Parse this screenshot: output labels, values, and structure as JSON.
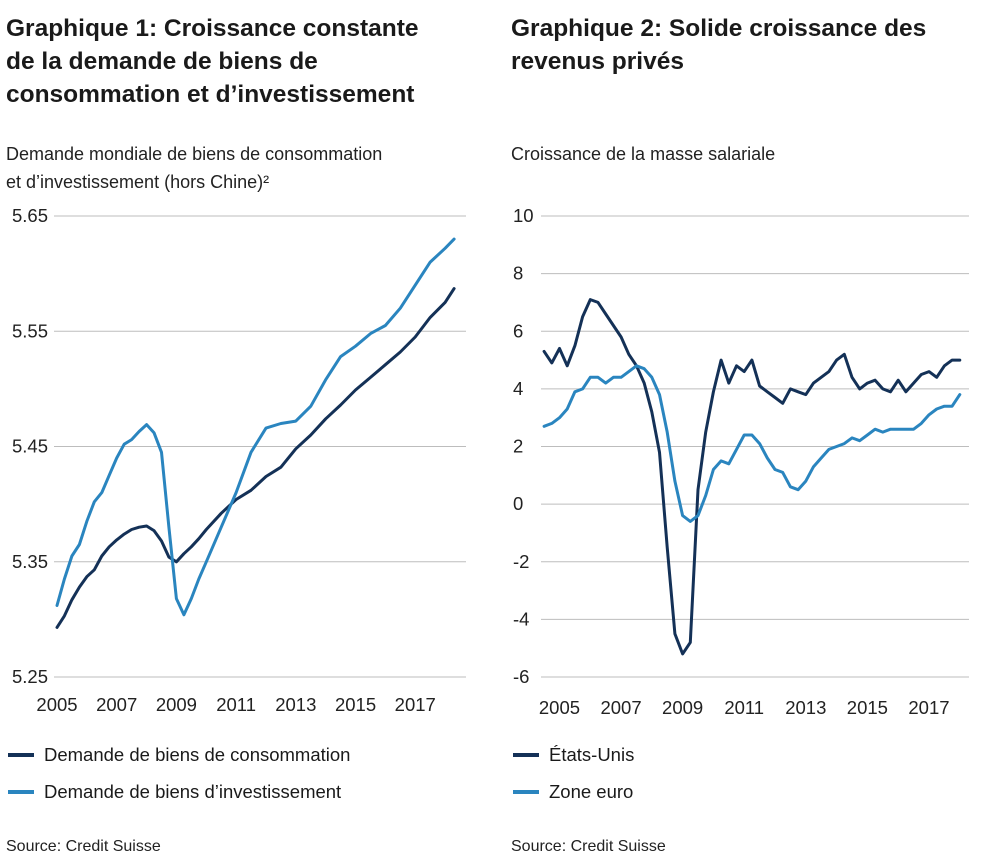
{
  "charts": [
    {
      "title_lines": [
        "Graphique 1: Croissance constante",
        "de la demande de biens de",
        "consommation et d’investissement"
      ],
      "subtitle_lines": [
        "Demande mondiale de biens de consommation",
        "et d’investissement (hors Chine)²"
      ],
      "source": "Source: Credit Suisse",
      "legend": [
        "Demande de biens de consommation",
        "Demande de biens d’investissement"
      ]
    },
    {
      "title_lines": [
        "Graphique 2: Solide croissance des",
        "revenus privés"
      ],
      "subtitle_lines": [
        "Croissance de la masse salariale"
      ],
      "source": "Source: Credit Suisse",
      "legend": [
        "États-Unis",
        "Zone euro"
      ]
    }
  ],
  "colors": {
    "dark": "#143157",
    "light": "#2a85bf",
    "grid": "#bdbdbd"
  },
  "chart_data": [
    {
      "type": "line",
      "title": "Graphique 1: Croissance constante de la demande de biens de consommation et d’investissement",
      "subtitle": "Demande mondiale de biens de consommation et d’investissement (hors Chine)²",
      "xlabel": "",
      "ylabel": "",
      "xlim": [
        2004.9,
        2018.7
      ],
      "ylim": [
        5.25,
        5.65
      ],
      "y_ticks": [
        5.25,
        5.35,
        5.45,
        5.55,
        5.65
      ],
      "x_ticks": [
        2005,
        2007,
        2009,
        2011,
        2013,
        2015,
        2017
      ],
      "grid": true,
      "legend_position": "bottom",
      "series": [
        {
          "name": "Demande de biens de consommation",
          "color": "#143157",
          "x": [
            2005.0,
            2005.25,
            2005.5,
            2005.75,
            2006.0,
            2006.25,
            2006.5,
            2006.75,
            2007.0,
            2007.25,
            2007.5,
            2007.75,
            2008.0,
            2008.25,
            2008.5,
            2008.75,
            2009.0,
            2009.25,
            2009.5,
            2009.75,
            2010.0,
            2010.5,
            2011.0,
            2011.5,
            2012.0,
            2012.5,
            2013.0,
            2013.5,
            2014.0,
            2014.5,
            2015.0,
            2015.5,
            2016.0,
            2016.5,
            2017.0,
            2017.5,
            2018.0,
            2018.3
          ],
          "y": [
            5.293,
            5.303,
            5.317,
            5.328,
            5.337,
            5.343,
            5.355,
            5.363,
            5.369,
            5.374,
            5.378,
            5.38,
            5.381,
            5.377,
            5.368,
            5.354,
            5.35,
            5.357,
            5.363,
            5.37,
            5.378,
            5.392,
            5.404,
            5.412,
            5.424,
            5.432,
            5.448,
            5.46,
            5.474,
            5.486,
            5.499,
            5.51,
            5.521,
            5.532,
            5.545,
            5.562,
            5.575,
            5.587
          ]
        },
        {
          "name": "Demande de biens d’investissement",
          "color": "#2a85bf",
          "x": [
            2005.0,
            2005.25,
            2005.5,
            2005.75,
            2006.0,
            2006.25,
            2006.5,
            2006.75,
            2007.0,
            2007.25,
            2007.5,
            2007.75,
            2008.0,
            2008.25,
            2008.5,
            2008.75,
            2009.0,
            2009.25,
            2009.5,
            2009.75,
            2010.0,
            2010.5,
            2011.0,
            2011.5,
            2012.0,
            2012.5,
            2013.0,
            2013.5,
            2014.0,
            2014.5,
            2015.0,
            2015.5,
            2016.0,
            2016.5,
            2017.0,
            2017.5,
            2018.0,
            2018.3
          ],
          "y": [
            5.312,
            5.335,
            5.355,
            5.365,
            5.385,
            5.402,
            5.41,
            5.425,
            5.44,
            5.452,
            5.456,
            5.463,
            5.469,
            5.462,
            5.445,
            5.38,
            5.318,
            5.304,
            5.318,
            5.335,
            5.35,
            5.38,
            5.41,
            5.445,
            5.466,
            5.47,
            5.472,
            5.485,
            5.508,
            5.528,
            5.537,
            5.548,
            5.555,
            5.57,
            5.59,
            5.61,
            5.622,
            5.63
          ]
        }
      ]
    },
    {
      "type": "line",
      "title": "Graphique 2: Solide croissance des revenus privés",
      "subtitle": "Croissance de la masse salariale",
      "xlabel": "",
      "ylabel": "",
      "xlim": [
        2004.4,
        2018.3
      ],
      "ylim": [
        -6,
        10
      ],
      "y_ticks": [
        -6,
        -4,
        -2,
        0,
        2,
        4,
        6,
        8,
        10
      ],
      "x_ticks": [
        2005,
        2007,
        2009,
        2011,
        2013,
        2015,
        2017
      ],
      "grid": true,
      "legend_position": "bottom",
      "series": [
        {
          "name": "États-Unis",
          "color": "#143157",
          "x": [
            2004.5,
            2004.75,
            2005.0,
            2005.25,
            2005.5,
            2005.75,
            2006.0,
            2006.25,
            2006.5,
            2006.75,
            2007.0,
            2007.25,
            2007.5,
            2007.75,
            2008.0,
            2008.25,
            2008.5,
            2008.75,
            2009.0,
            2009.25,
            2009.5,
            2009.75,
            2010.0,
            2010.25,
            2010.5,
            2010.75,
            2011.0,
            2011.25,
            2011.5,
            2011.75,
            2012.0,
            2012.25,
            2012.5,
            2012.75,
            2013.0,
            2013.25,
            2013.5,
            2013.75,
            2014.0,
            2014.25,
            2014.5,
            2014.75,
            2015.0,
            2015.25,
            2015.5,
            2015.75,
            2016.0,
            2016.25,
            2016.5,
            2016.75,
            2017.0,
            2017.25,
            2017.5,
            2017.75,
            2018.0
          ],
          "y": [
            5.3,
            4.9,
            5.4,
            4.8,
            5.5,
            6.5,
            7.1,
            7.0,
            6.6,
            6.2,
            5.8,
            5.2,
            4.8,
            4.2,
            3.2,
            1.8,
            -1.5,
            -4.5,
            -5.2,
            -4.8,
            0.5,
            2.5,
            3.9,
            5.0,
            4.2,
            4.8,
            4.6,
            5.0,
            4.1,
            3.9,
            3.7,
            3.5,
            4.0,
            3.9,
            3.8,
            4.2,
            4.4,
            4.6,
            5.0,
            5.2,
            4.4,
            4.0,
            4.2,
            4.3,
            4.0,
            3.9,
            4.3,
            3.9,
            4.2,
            4.5,
            4.6,
            4.4,
            4.8,
            5.0,
            5.0
          ]
        },
        {
          "name": "Zone euro",
          "color": "#2a85bf",
          "x": [
            2004.5,
            2004.75,
            2005.0,
            2005.25,
            2005.5,
            2005.75,
            2006.0,
            2006.25,
            2006.5,
            2006.75,
            2007.0,
            2007.25,
            2007.5,
            2007.75,
            2008.0,
            2008.25,
            2008.5,
            2008.75,
            2009.0,
            2009.25,
            2009.5,
            2009.75,
            2010.0,
            2010.25,
            2010.5,
            2010.75,
            2011.0,
            2011.25,
            2011.5,
            2011.75,
            2012.0,
            2012.25,
            2012.5,
            2012.75,
            2013.0,
            2013.25,
            2013.5,
            2013.75,
            2014.0,
            2014.25,
            2014.5,
            2014.75,
            2015.0,
            2015.25,
            2015.5,
            2015.75,
            2016.0,
            2016.25,
            2016.5,
            2016.75,
            2017.0,
            2017.25,
            2017.5,
            2017.75,
            2018.0
          ],
          "y": [
            2.7,
            2.8,
            3.0,
            3.3,
            3.9,
            4.0,
            4.4,
            4.4,
            4.2,
            4.4,
            4.4,
            4.6,
            4.8,
            4.7,
            4.4,
            3.8,
            2.5,
            0.8,
            -0.4,
            -0.6,
            -0.4,
            0.3,
            1.2,
            1.5,
            1.4,
            1.9,
            2.4,
            2.4,
            2.1,
            1.6,
            1.2,
            1.1,
            0.6,
            0.5,
            0.8,
            1.3,
            1.6,
            1.9,
            2.0,
            2.1,
            2.3,
            2.2,
            2.4,
            2.6,
            2.5,
            2.6,
            2.6,
            2.6,
            2.6,
            2.8,
            3.1,
            3.3,
            3.4,
            3.4,
            3.8
          ]
        }
      ]
    }
  ]
}
